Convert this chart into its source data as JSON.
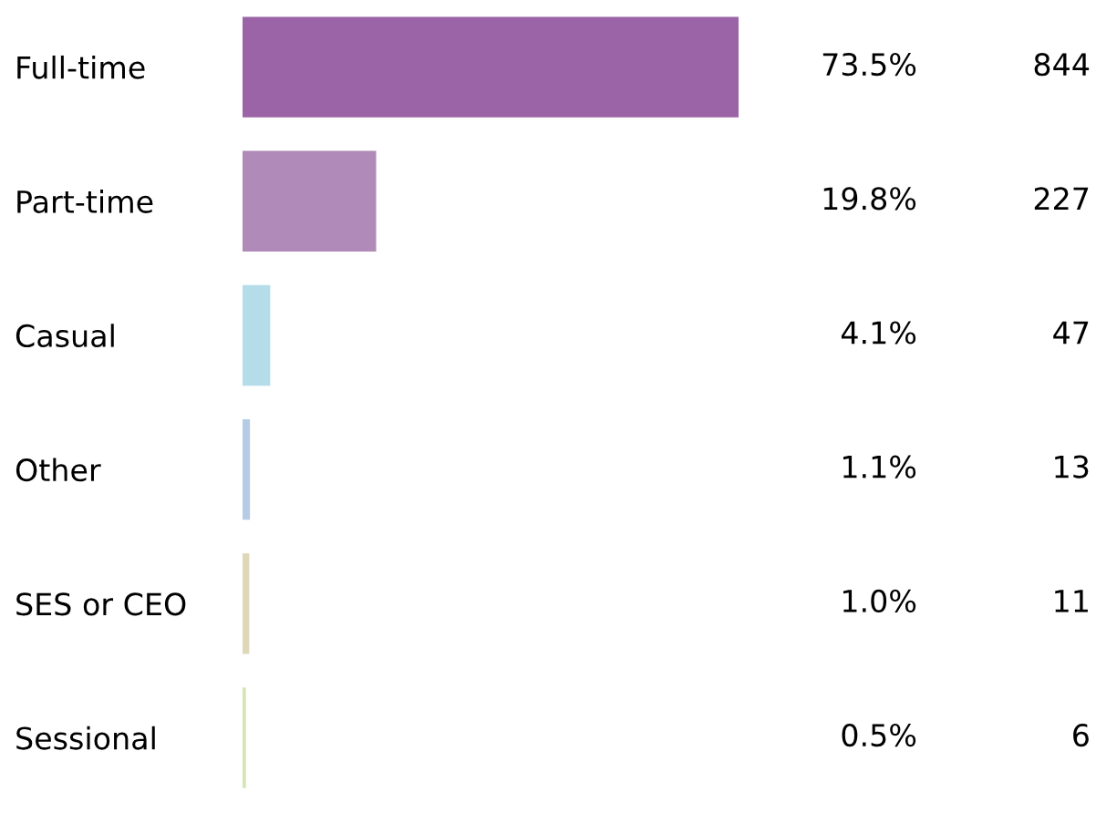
{
  "chart_data": {
    "type": "bar",
    "orientation": "horizontal",
    "categories": [
      "Full-time",
      "Part-time",
      "Casual",
      "Other",
      "SES or CEO",
      "Sessional"
    ],
    "values": [
      73.5,
      19.8,
      4.1,
      1.1,
      1.0,
      0.5
    ],
    "colors": [
      "#9a64a6",
      "#b08ab8",
      "#b4dde9",
      "#b6cbe6",
      "#ded8b8",
      "#d4e6b4"
    ],
    "value_labels": [
      "73.5%",
      "19.8%",
      "4.1%",
      "1.1%",
      "1.0%",
      "0.5%"
    ],
    "annotations": [
      "844",
      "227",
      "47",
      "13",
      "11",
      "6"
    ],
    "grid": false,
    "legend": false
  }
}
